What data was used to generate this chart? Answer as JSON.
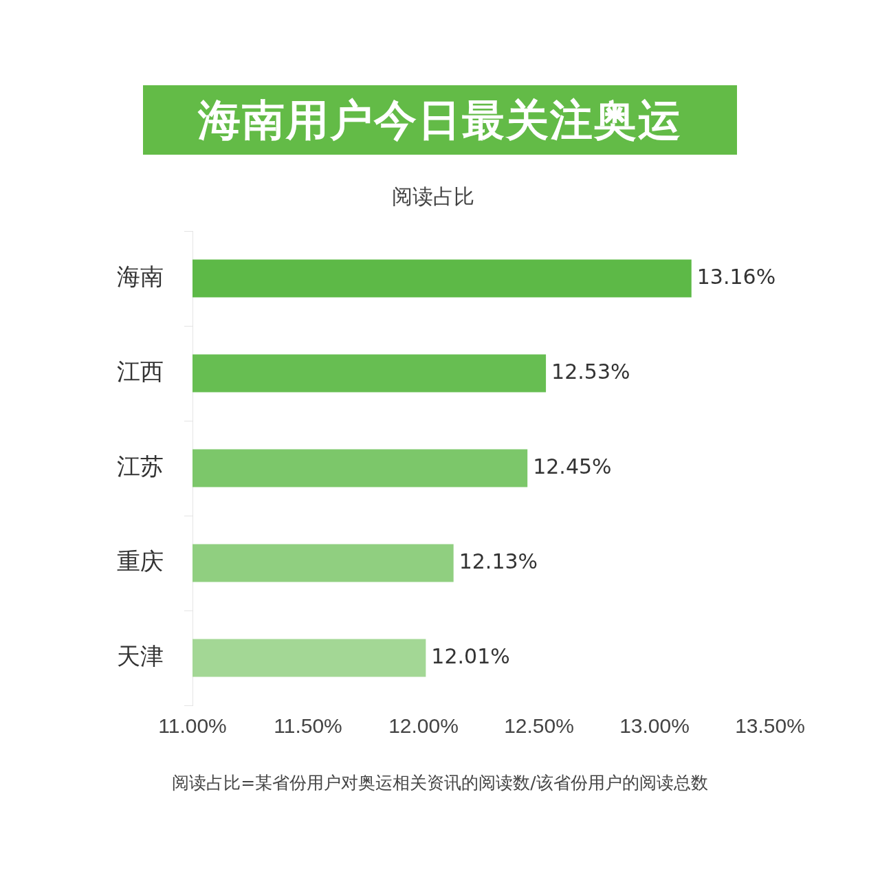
{
  "chart_data": {
    "type": "bar",
    "orientation": "horizontal",
    "title": "海南用户今日最关注奥运",
    "subtitle": "阅读占比",
    "categories": [
      "海南",
      "江西",
      "江苏",
      "重庆",
      "天津"
    ],
    "values": [
      13.16,
      12.53,
      12.45,
      12.13,
      12.01
    ],
    "colors": [
      "#5db947",
      "#67be52",
      "#7cc76a",
      "#90cf80",
      "#a3d795"
    ],
    "value_labels": [
      "13.16%",
      "12.53%",
      "12.45%",
      "12.13%",
      "12.01%"
    ],
    "xlim": [
      11,
      13.5
    ],
    "xticks": [
      {
        "value": 11,
        "label": "11.00%"
      },
      {
        "value": 11.5,
        "label": "11.50%"
      },
      {
        "value": 12,
        "label": "12.00%"
      },
      {
        "value": 12.5,
        "label": "12.50%"
      },
      {
        "value": 13,
        "label": "13.00%"
      },
      {
        "value": 13.5,
        "label": "13.50%"
      }
    ],
    "grid": false,
    "legend": false,
    "annotations": [
      "阅读占比=某省份用户对奥运相关资讯的阅读数/该省份用户的阅读总数"
    ]
  }
}
